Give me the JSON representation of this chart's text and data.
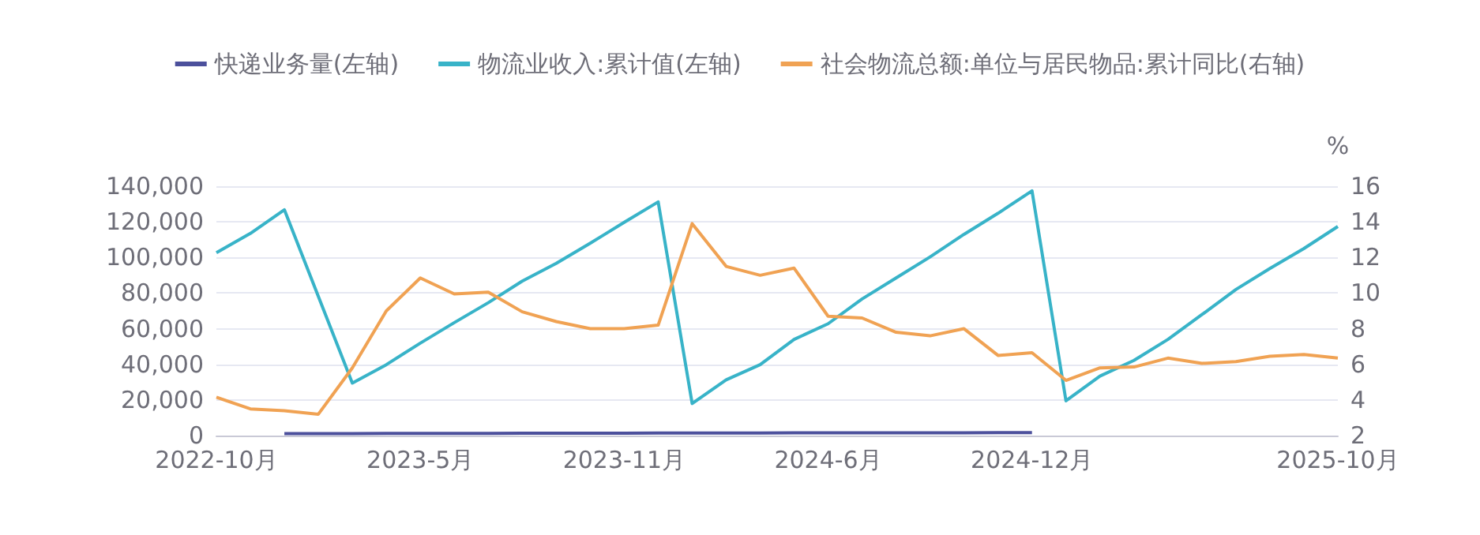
{
  "chart_data": {
    "type": "line",
    "categories": [
      "2022-10月",
      null,
      null,
      null,
      null,
      null,
      "2023-5月",
      null,
      null,
      null,
      null,
      null,
      "2023-11月",
      null,
      null,
      null,
      null,
      null,
      "2024-6月",
      null,
      null,
      null,
      null,
      null,
      "2024-12月",
      null,
      null,
      null,
      null,
      null,
      null,
      null,
      null,
      "2025-10月"
    ],
    "series": [
      {
        "name": "快递业务量(左轴)",
        "color": "#4c509c",
        "values": [
          null,
          null,
          1100,
          1100,
          1150,
          1200,
          1200,
          1250,
          1250,
          1300,
          1300,
          1350,
          1350,
          1400,
          1400,
          1450,
          1450,
          1500,
          1500,
          1550,
          1550,
          1600,
          1600,
          1650,
          1700,
          null,
          null,
          null,
          null,
          null,
          null,
          null,
          null,
          null
        ]
      },
      {
        "name": "物流业收入:累计值(左轴)",
        "color": "#38b3c8",
        "values": [
          102700,
          113500,
          126800,
          null,
          29500,
          39800,
          51900,
          63400,
          74600,
          86700,
          96700,
          108000,
          119700,
          131200,
          18000,
          31300,
          39800,
          54000,
          62800,
          76700,
          88500,
          100300,
          113000,
          124800,
          137400,
          19500,
          33400,
          42200,
          54000,
          67900,
          82000,
          93800,
          105000,
          117400
        ]
      },
      {
        "name": "社会物流总额:单位与居民物品:累计同比(右轴)",
        "color": "#f0a253",
        "axis": "y2",
        "values": [
          4.15,
          3.5,
          3.4,
          3.2,
          5.8,
          9.0,
          10.85,
          9.95,
          10.05,
          8.95,
          8.4,
          8.0,
          8.0,
          8.2,
          13.9,
          11.5,
          11.0,
          11.4,
          8.7,
          8.6,
          7.8,
          7.6,
          8.0,
          6.5,
          6.65,
          5.1,
          5.8,
          5.85,
          6.35,
          6.05,
          6.15,
          6.45,
          6.55,
          6.35
        ]
      }
    ],
    "ylim": [
      0,
      140000
    ],
    "yticks": [
      {
        "value": 0,
        "label": "0"
      },
      {
        "value": 20000,
        "label": "20,000"
      },
      {
        "value": 40000,
        "label": "40,000"
      },
      {
        "value": 60000,
        "label": "60,000"
      },
      {
        "value": 80000,
        "label": "80,000"
      },
      {
        "value": 100000,
        "label": "100,000"
      },
      {
        "value": 120000,
        "label": "120,000"
      },
      {
        "value": 140000,
        "label": "140,000"
      }
    ],
    "y2lim": [
      2,
      16
    ],
    "y2ticks": [
      2,
      4,
      6,
      8,
      10,
      12,
      14,
      16
    ],
    "y2label": "%",
    "grid": "y",
    "legend": "top",
    "marker": "none",
    "line_style": "solid"
  }
}
